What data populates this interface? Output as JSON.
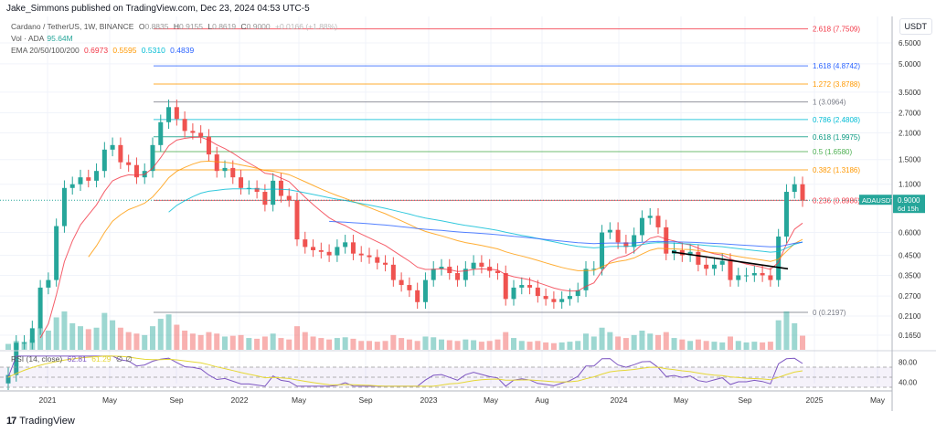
{
  "header": {
    "published": "Jake_Simmons published on TradingView.com, Dec 23, 2024 04:53 UTC-5"
  },
  "legend": {
    "symbol": "Cardano / TetherUS, 1W, BINANCE",
    "o_label": "O",
    "o": "0.8835",
    "h_label": "H",
    "h": "0.9155",
    "l_label": "L",
    "l": "0.8619",
    "c_label": "C",
    "c": "0.9000",
    "change": "+0.0166 (+1.88%)",
    "vol_label": "Vol · ADA",
    "vol": "95.64M",
    "ema_label": "EMA 20/50/100/200",
    "ema": [
      "0.6973",
      "0.5595",
      "0.5310",
      "0.4839"
    ],
    "ema_colors": [
      "#f23645",
      "#ff9800",
      "#00bcd4",
      "#2962ff"
    ]
  },
  "rsi": {
    "label": "RSI (14, close)",
    "value": "62.81",
    "ma": "61.29",
    "na1": "∅",
    "na2": "∅",
    "levels": [
      80,
      40
    ]
  },
  "price_axis": {
    "unit": "USDT",
    "ticks": [
      "6.5000",
      "5.0000",
      "3.5000",
      "2.7000",
      "2.1000",
      "1.5000",
      "1.1000",
      "0.6000",
      "0.4500",
      "0.3500",
      "0.2700",
      "0.2100",
      "0.1650"
    ],
    "rsi_ticks": [
      "80.00",
      "40.00"
    ]
  },
  "last_price": {
    "symbol": "ADAUSDT",
    "price": "0.9000",
    "countdown": "6d 15h",
    "color": "#26a69a"
  },
  "time_axis": [
    "2021",
    "May",
    "Sep",
    "2022",
    "May",
    "Sep",
    "2023",
    "May",
    "Aug",
    "2024",
    "May",
    "Sep",
    "2025",
    "May"
  ],
  "fib": [
    {
      "level": "2.618",
      "price": 7.7509,
      "label": "2.618 (7.7509)",
      "color": "#f23645"
    },
    {
      "level": "1.618",
      "price": 4.8742,
      "label": "1.618 (4.8742)",
      "color": "#2962ff"
    },
    {
      "level": "1.272",
      "price": 3.8788,
      "label": "1.272 (3.8788)",
      "color": "#ff9800"
    },
    {
      "level": "1",
      "price": 3.0964,
      "label": "1 (3.0964)",
      "color": "#787b86"
    },
    {
      "level": "0.786",
      "price": 2.4808,
      "label": "0.786 (2.4808)",
      "color": "#00bcd4"
    },
    {
      "level": "0.618",
      "price": 1.9975,
      "label": "0.618 (1.9975)",
      "color": "#089981"
    },
    {
      "level": "0.5",
      "price": 1.658,
      "label": "0.5 (1.6580)",
      "color": "#4caf50"
    },
    {
      "level": "0.382",
      "price": 1.3186,
      "label": "0.382 (1.3186)",
      "color": "#ff9800"
    },
    {
      "level": "0.236",
      "price": 0.8986,
      "label": "0.236 (0.8986)",
      "color": "#f23645"
    },
    {
      "level": "0",
      "price": 0.2197,
      "label": "0 (0.2197)",
      "color": "#787b86"
    }
  ],
  "chart_data": {
    "type": "candlestick",
    "interval": "1W (shown at ~2-week resolution)",
    "y_scale": "log",
    "ylim": [
      0.15,
      8.5
    ],
    "x_range": [
      "2020-10",
      "2025-06"
    ],
    "closes": [
      0.1,
      0.15,
      0.15,
      0.18,
      0.3,
      0.33,
      0.65,
      1.05,
      1.1,
      1.2,
      1.15,
      1.3,
      1.7,
      1.8,
      1.45,
      1.4,
      1.2,
      1.3,
      1.8,
      2.4,
      2.9,
      2.5,
      2.15,
      2.1,
      2.0,
      1.6,
      1.3,
      1.35,
      1.2,
      1.05,
      1.05,
      1.0,
      0.85,
      1.15,
      0.95,
      0.9,
      0.55,
      0.5,
      0.48,
      0.47,
      0.45,
      0.5,
      0.53,
      0.46,
      0.45,
      0.44,
      0.41,
      0.4,
      0.33,
      0.31,
      0.29,
      0.25,
      0.33,
      0.38,
      0.39,
      0.36,
      0.33,
      0.38,
      0.41,
      0.39,
      0.37,
      0.36,
      0.26,
      0.3,
      0.31,
      0.3,
      0.27,
      0.26,
      0.25,
      0.26,
      0.27,
      0.29,
      0.38,
      0.38,
      0.6,
      0.62,
      0.53,
      0.5,
      0.58,
      0.72,
      0.74,
      0.64,
      0.46,
      0.48,
      0.45,
      0.47,
      0.4,
      0.38,
      0.4,
      0.42,
      0.33,
      0.35,
      0.35,
      0.36,
      0.35,
      0.33,
      0.57,
      1.0,
      1.1,
      0.9
    ],
    "volume_m": [
      40,
      60,
      55,
      70,
      150,
      130,
      220,
      260,
      180,
      160,
      140,
      150,
      250,
      200,
      150,
      120,
      110,
      100,
      160,
      210,
      240,
      170,
      130,
      110,
      100,
      120,
      110,
      90,
      95,
      100,
      80,
      75,
      90,
      110,
      80,
      70,
      160,
      120,
      90,
      80,
      70,
      80,
      85,
      75,
      60,
      60,
      55,
      60,
      100,
      80,
      70,
      60,
      90,
      85,
      70,
      65,
      60,
      70,
      65,
      55,
      60,
      70,
      120,
      80,
      60,
      55,
      60,
      50,
      45,
      50,
      55,
      60,
      110,
      90,
      150,
      120,
      90,
      80,
      100,
      130,
      110,
      100,
      120,
      80,
      70,
      60,
      70,
      60,
      55,
      50,
      90,
      60,
      50,
      55,
      50,
      55,
      200,
      260,
      180,
      95.64
    ],
    "trendline": {
      "from": [
        "2024-04",
        0.47
      ],
      "to": [
        "2024-11",
        0.38
      ]
    }
  }
}
